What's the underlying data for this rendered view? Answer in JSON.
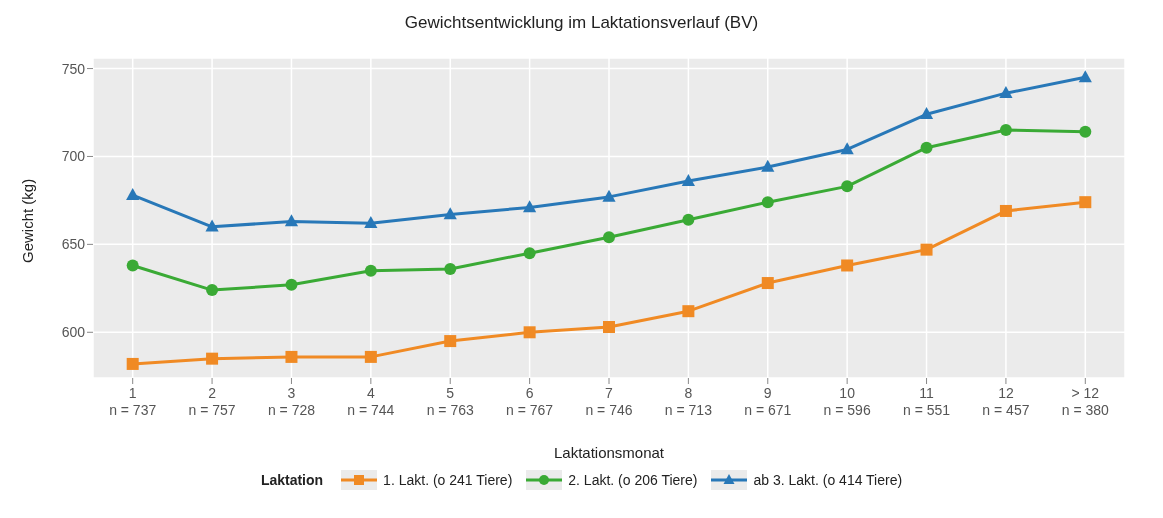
{
  "chart_data": {
    "type": "line",
    "title": "Gewichtsentwicklung im Laktationsverlauf (BV)",
    "xlabel": "Laktationsmonat",
    "ylabel": "Gewicht (kg)",
    "legend_title": "Laktation",
    "categories": [
      "1\nn = 737",
      "2\nn = 757",
      "3\nn = 728",
      "4\nn = 744",
      "5\nn = 763",
      "6\nn = 767",
      "7\nn = 746",
      "8\nn = 713",
      "9\nn = 671",
      "10\nn = 596",
      "11\nn = 551",
      "12\nn = 457",
      "> 12\nn = 380"
    ],
    "series": [
      {
        "name": "1. Lakt. (o 241 Tiere)",
        "color": "#f08a24",
        "marker": "square",
        "values": [
          582,
          585,
          586,
          586,
          595,
          600,
          603,
          612,
          628,
          638,
          647,
          669,
          674
        ]
      },
      {
        "name": "2. Lakt. (o 206 Tiere)",
        "color": "#3aaa35",
        "marker": "circle",
        "values": [
          638,
          624,
          627,
          635,
          636,
          645,
          654,
          664,
          674,
          683,
          705,
          715,
          714
        ]
      },
      {
        "name": "ab 3. Lakt. (o 414 Tiere)",
        "color": "#2878b8",
        "marker": "triangle",
        "values": [
          678,
          660,
          663,
          662,
          667,
          671,
          677,
          686,
          694,
          704,
          724,
          736,
          745
        ]
      }
    ],
    "ylim": [
      574,
      756
    ],
    "yticks": [
      600,
      650,
      700,
      750
    ],
    "grid": true,
    "legend": "bottom",
    "line_style": "solid"
  }
}
